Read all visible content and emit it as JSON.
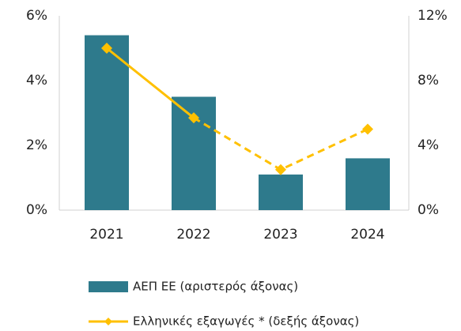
{
  "chart_data": {
    "type": "bar_line",
    "categories": [
      "2021",
      "2022",
      "2023",
      "2024"
    ],
    "series": [
      {
        "name": "ΑΕΠ ΕΕ (αριστερός άξονας)",
        "color": "#2e7a8c",
        "type": "bar",
        "values": [
          5.4,
          3.5,
          1.1,
          1.6
        ]
      },
      {
        "name": "Ελληνικές εξαγωγές * (δεξής άξονας)",
        "color": "#ffc000",
        "type": "line",
        "axis": "y2",
        "dashed_from": 1,
        "values": [
          10.0,
          5.7,
          2.5,
          5.0
        ]
      }
    ],
    "ylim": [
      0,
      6
    ],
    "yticks": [
      {
        "value": 0,
        "label": "0%"
      },
      {
        "value": 2,
        "label": "2%"
      },
      {
        "value": 4,
        "label": "4%"
      },
      {
        "value": 6,
        "label": "6%"
      }
    ],
    "y2lim": [
      0,
      12
    ],
    "y2ticks": [
      {
        "value": 0,
        "label": "0%"
      },
      {
        "value": 4,
        "label": "4%"
      },
      {
        "value": 8,
        "label": "8%"
      },
      {
        "value": 12,
        "label": "12%"
      }
    ],
    "legend": "bottom"
  }
}
